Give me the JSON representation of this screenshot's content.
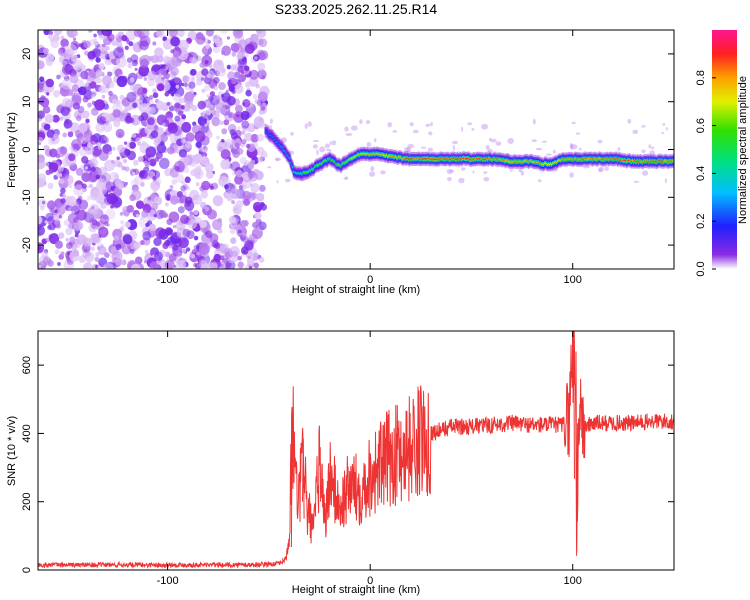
{
  "title": "S233.2025.262.11.25.R14",
  "chart_data": [
    {
      "type": "heatmap",
      "xlabel": "Height of straight line (km)",
      "ylabel": "Frequency (Hz)",
      "xlim": [
        -164,
        150
      ],
      "ylim": [
        -25,
        25
      ],
      "xticks": [
        -100,
        0,
        100
      ],
      "yticks": [
        -20,
        -10,
        0,
        10,
        20
      ],
      "colorbar": {
        "label": "Normalized spectral amplitude",
        "range": [
          0,
          1
        ],
        "ticks": [
          0.0,
          0.2,
          0.4,
          0.6,
          0.8
        ],
        "tick_labels": [
          "0.0",
          "0.2",
          "0.4",
          "0.6",
          "0.8"
        ]
      },
      "noise_region_x": [
        -164,
        -52
      ],
      "ridge": {
        "x": [
          -52,
          -47,
          -43,
          -40,
          -38,
          -36,
          -34,
          -30,
          -25,
          -20,
          -15,
          -10,
          -5,
          0,
          5,
          10,
          20,
          30,
          40,
          50,
          60,
          70,
          75,
          80,
          85,
          90,
          95,
          100,
          110,
          120,
          130,
          140,
          150
        ],
        "freq": [
          4,
          2,
          0,
          -2,
          -4.5,
          -5,
          -5,
          -4.5,
          -3,
          -2,
          -3.5,
          -2,
          -1,
          -1,
          -1,
          -1.5,
          -2,
          -2,
          -2,
          -2,
          -2,
          -2.5,
          -2.5,
          -2.5,
          -3,
          -3,
          -2,
          -2,
          -2,
          -2,
          -2.5,
          -2.5,
          -2.5
        ],
        "amplitude": [
          0.25,
          0.3,
          0.35,
          0.4,
          0.45,
          0.5,
          0.55,
          0.6,
          0.65,
          0.6,
          0.65,
          0.7,
          0.75,
          0.8,
          0.8,
          0.85,
          0.9,
          0.95,
          0.95,
          0.95,
          0.9,
          0.85,
          0.85,
          0.85,
          0.8,
          0.75,
          0.85,
          0.85,
          0.9,
          0.9,
          0.9,
          0.9,
          0.9
        ]
      }
    },
    {
      "type": "line",
      "xlabel": "Height of straight line (km)",
      "ylabel": "SNR (10 * v/v)",
      "xlim": [
        -164,
        150
      ],
      "ylim": [
        0,
        700
      ],
      "xticks": [
        -100,
        0,
        100
      ],
      "yticks": [
        0,
        200,
        400,
        600
      ],
      "series": [
        {
          "name": "SNR",
          "color": "#ee3333",
          "x": [
            -164,
            -140,
            -120,
            -100,
            -80,
            -60,
            -45,
            -42,
            -40,
            -39,
            -38,
            -37,
            -35,
            -33,
            -31,
            -30,
            -28,
            -25,
            -22,
            -20,
            -15,
            -10,
            -5,
            0,
            10,
            20,
            30,
            40,
            50,
            60,
            70,
            80,
            90,
            95,
            98,
            100,
            101,
            102,
            103,
            104,
            106,
            110,
            120,
            130,
            140,
            150
          ],
          "y": [
            15,
            15,
            15,
            15,
            15,
            15,
            18,
            30,
            80,
            300,
            455,
            250,
            200,
            380,
            150,
            160,
            110,
            320,
            140,
            280,
            180,
            250,
            230,
            280,
            330,
            360,
            400,
            420,
            420,
            425,
            430,
            425,
            425,
            425,
            440,
            640,
            700,
            55,
            480,
            430,
            420,
            430,
            430,
            430,
            435,
            435
          ]
        }
      ]
    }
  ]
}
